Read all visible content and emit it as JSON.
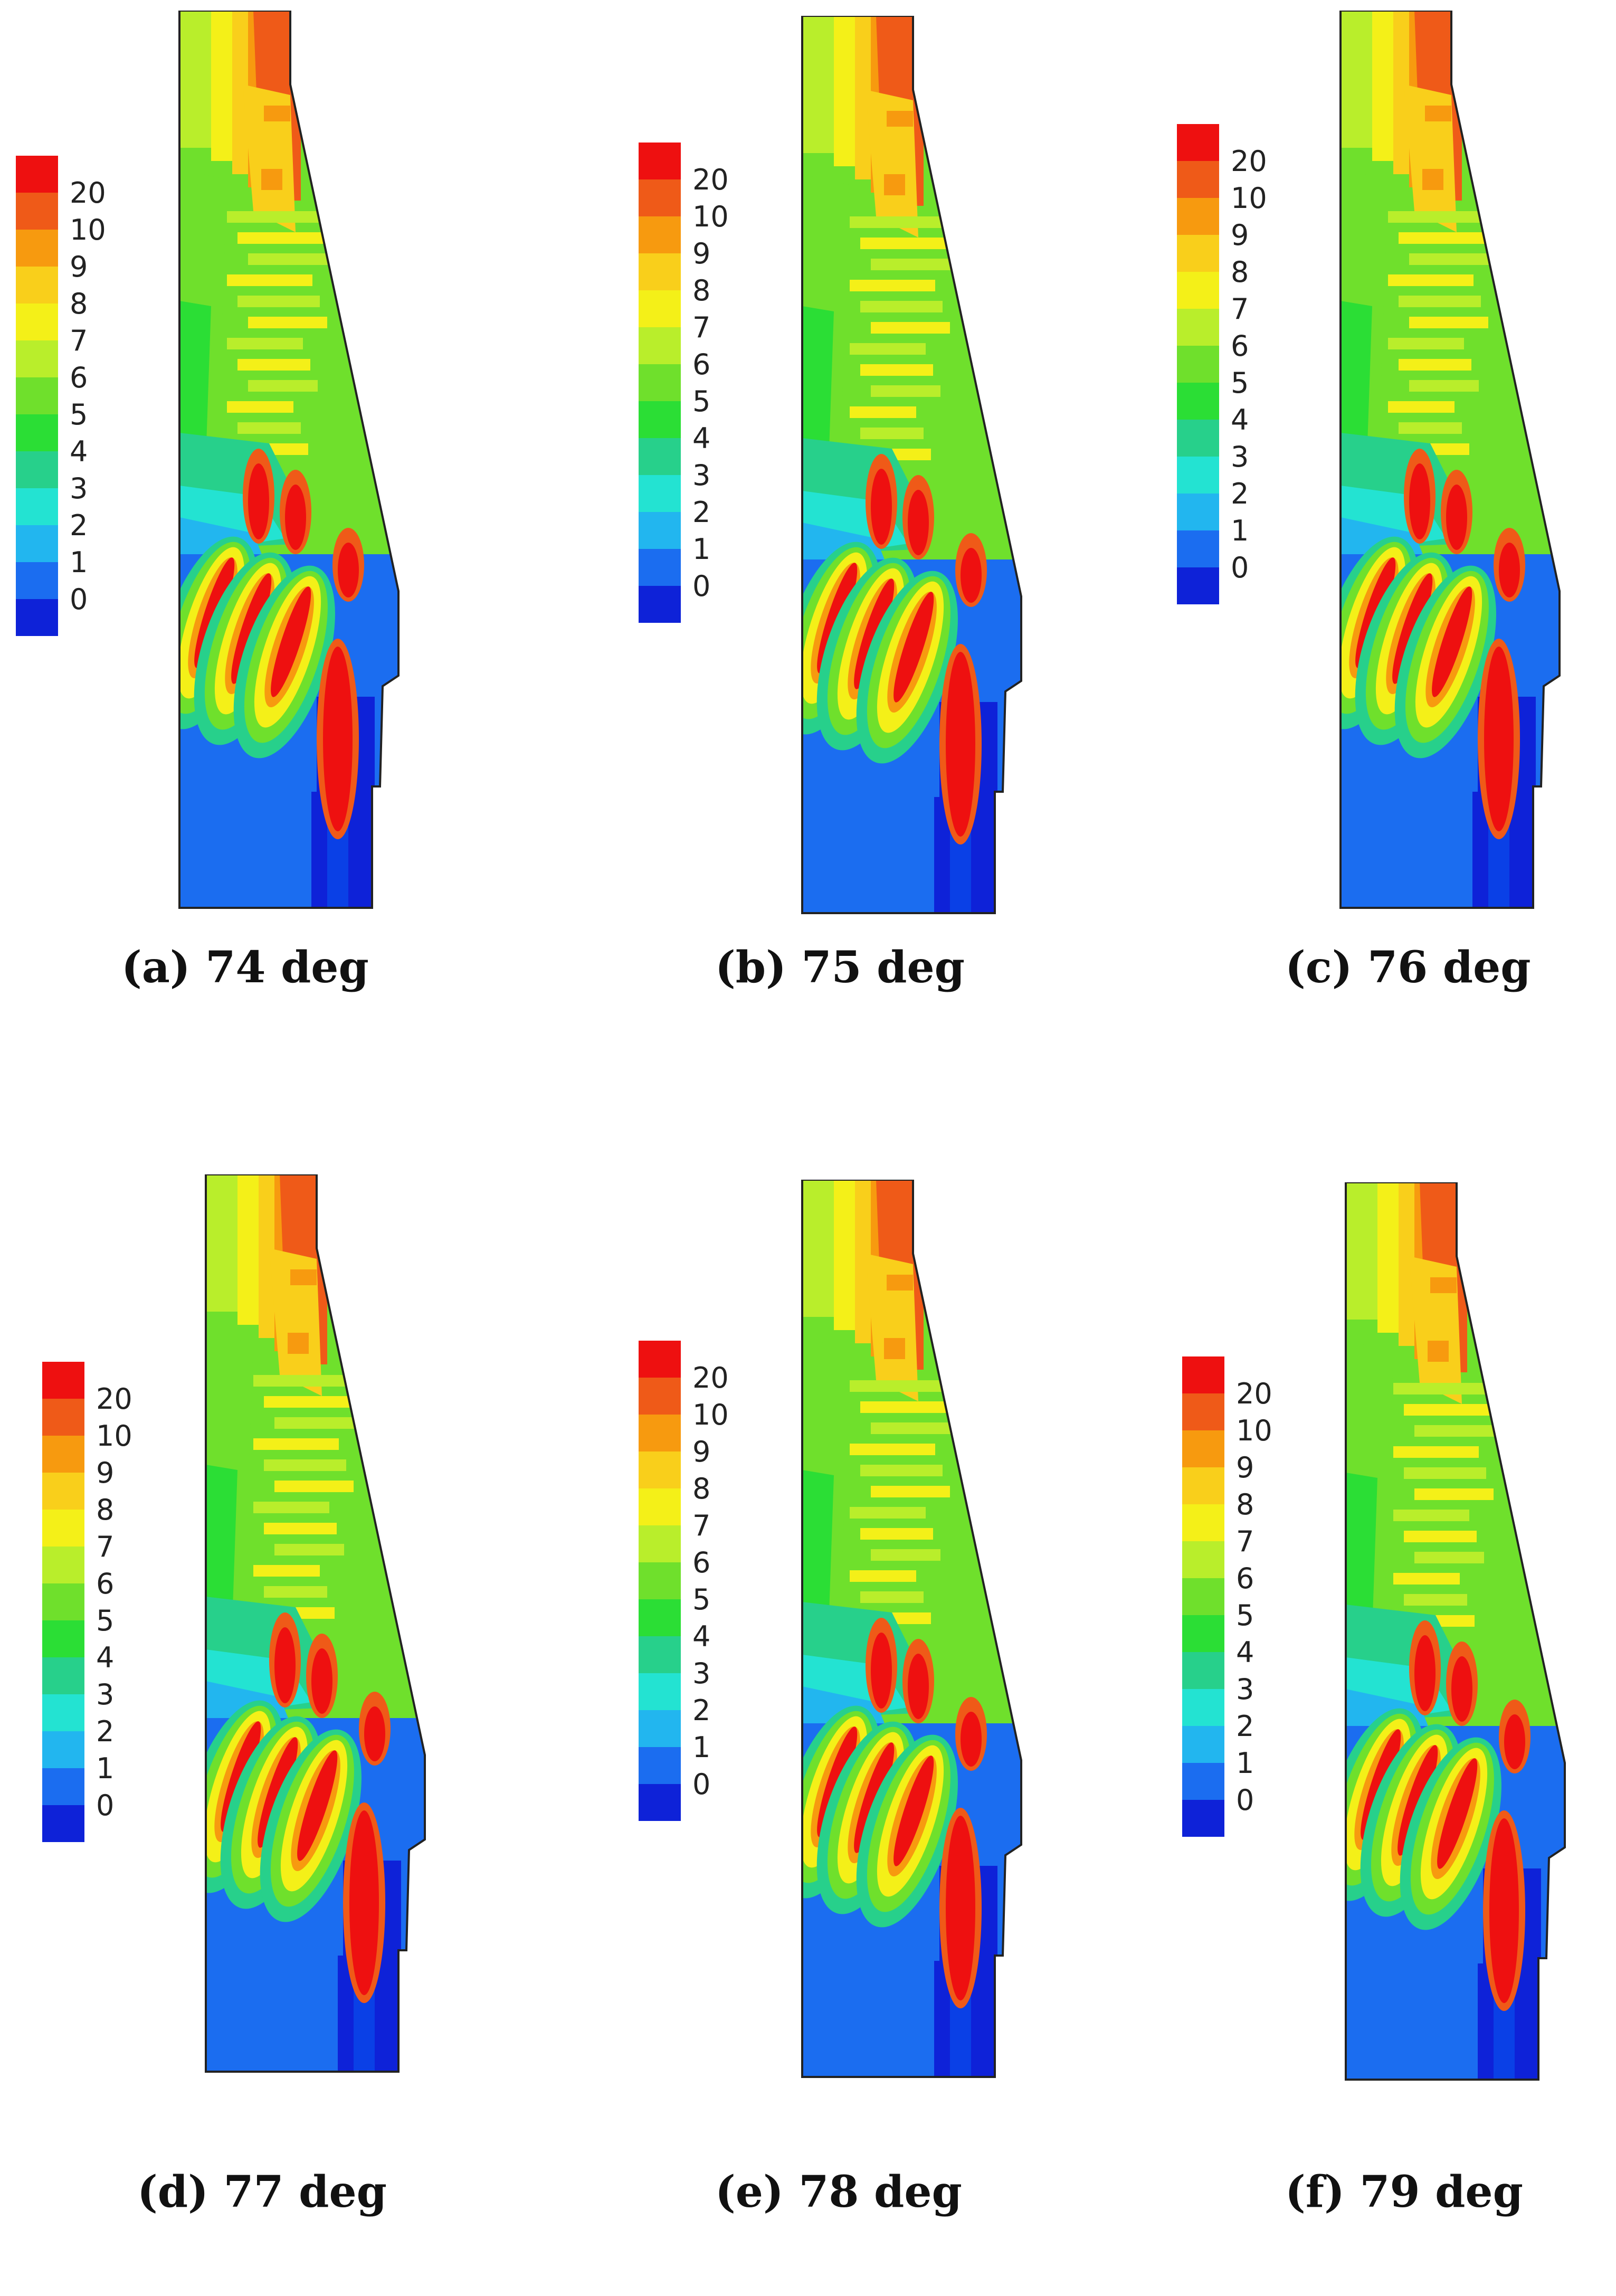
{
  "legend_levels": [
    "20",
    "10",
    "9",
    "8",
    "7",
    "6",
    "5",
    "4",
    "3",
    "2",
    "1",
    "0"
  ],
  "legend_colors": [
    "#ee1010",
    "#ef5a18",
    "#f79a0f",
    "#f9cf1b",
    "#f4f018",
    "#b9ee2b",
    "#6fe02c",
    "#2bde35",
    "#27d08b",
    "#23e3d2",
    "#22b6ef",
    "#1b6df0",
    "#0e22d8"
  ],
  "panels": [
    {
      "label": "(a)",
      "title": "74 deg"
    },
    {
      "label": "(b)",
      "title": "75 deg"
    },
    {
      "label": "(c)",
      "title": "76 deg"
    },
    {
      "label": "(d)",
      "title": "77 deg"
    },
    {
      "label": "(e)",
      "title": "78 deg"
    },
    {
      "label": "(f)",
      "title": "79 deg"
    }
  ]
}
